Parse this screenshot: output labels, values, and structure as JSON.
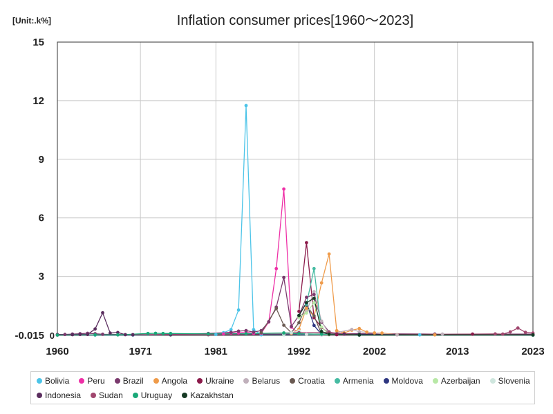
{
  "chart_data": {
    "type": "line",
    "title": "Inflation consumer prices[1960～2023]",
    "unit_label": "[Unit:.k%]",
    "xlim": [
      1960,
      2023
    ],
    "ylim": [
      -0.015,
      15
    ],
    "x_ticks": [
      1960,
      1971,
      1981,
      1992,
      2002,
      2013,
      2023
    ],
    "y_ticks": [
      {
        "value": 15,
        "label": "15"
      },
      {
        "value": 12,
        "label": "12"
      },
      {
        "value": 9,
        "label": "9"
      },
      {
        "value": 6,
        "label": "6"
      },
      {
        "value": 3,
        "label": "3"
      },
      {
        "value": -0.015,
        "label": "-0.015"
      }
    ],
    "y_tick_zero_label": "0",
    "grid": true,
    "legend_position": "bottom",
    "series": [
      {
        "name": "Bolivia",
        "color": "#4cc4e8",
        "points": [
          [
            1960,
            0.01
          ],
          [
            1965,
            0.0
          ],
          [
            1970,
            0.0
          ],
          [
            1975,
            0.01
          ],
          [
            1980,
            0.05
          ],
          [
            1981,
            0.03
          ],
          [
            1982,
            0.12
          ],
          [
            1983,
            0.28
          ],
          [
            1984,
            1.28
          ],
          [
            1985,
            11.75
          ],
          [
            1986,
            0.28
          ],
          [
            1987,
            0.015
          ],
          [
            1990,
            0.02
          ],
          [
            1995,
            0.01
          ],
          [
            2000,
            0.005
          ],
          [
            2008,
            0.01
          ],
          [
            2023,
            0.0
          ]
        ]
      },
      {
        "name": "Peru",
        "color": "#ee2fa6",
        "points": [
          [
            1960,
            0.01
          ],
          [
            1975,
            0.02
          ],
          [
            1980,
            0.06
          ],
          [
            1982,
            0.06
          ],
          [
            1983,
            0.11
          ],
          [
            1984,
            0.11
          ],
          [
            1985,
            0.16
          ],
          [
            1986,
            0.08
          ],
          [
            1987,
            0.09
          ],
          [
            1988,
            0.67
          ],
          [
            1989,
            3.4
          ],
          [
            1990,
            7.48
          ],
          [
            1991,
            0.41
          ],
          [
            1992,
            0.07
          ],
          [
            1993,
            0.05
          ],
          [
            1995,
            0.01
          ],
          [
            2000,
            0.0
          ],
          [
            2023,
            0.0
          ]
        ]
      },
      {
        "name": "Brazil",
        "color": "#7a3a6d",
        "points": [
          [
            1960,
            0.03
          ],
          [
            1961,
            0.03
          ],
          [
            1962,
            0.05
          ],
          [
            1963,
            0.07
          ],
          [
            1964,
            0.09
          ],
          [
            1965,
            0.07
          ],
          [
            1966,
            0.04
          ],
          [
            1970,
            0.02
          ],
          [
            1975,
            0.03
          ],
          [
            1980,
            0.08
          ],
          [
            1983,
            0.14
          ],
          [
            1984,
            0.2
          ],
          [
            1985,
            0.23
          ],
          [
            1986,
            0.15
          ],
          [
            1987,
            0.23
          ],
          [
            1988,
            0.68
          ],
          [
            1989,
            1.43
          ],
          [
            1990,
            2.95
          ],
          [
            1991,
            0.44
          ],
          [
            1992,
            1.0
          ],
          [
            1993,
            1.93
          ],
          [
            1994,
            2.08
          ],
          [
            1995,
            0.66
          ],
          [
            1996,
            0.16
          ],
          [
            1997,
            0.07
          ],
          [
            2000,
            0.07
          ],
          [
            2010,
            0.05
          ],
          [
            2023,
            0.05
          ]
        ]
      },
      {
        "name": "Angola",
        "color": "#ef9b4a",
        "points": [
          [
            1991,
            0.08
          ],
          [
            1992,
            0.3
          ],
          [
            1993,
            1.38
          ],
          [
            1994,
            0.95
          ],
          [
            1995,
            2.67
          ],
          [
            1996,
            4.15
          ],
          [
            1997,
            0.22
          ],
          [
            1998,
            0.11
          ],
          [
            1999,
            0.25
          ],
          [
            2000,
            0.33
          ],
          [
            2001,
            0.15
          ],
          [
            2002,
            0.11
          ],
          [
            2003,
            0.1
          ],
          [
            2005,
            0.02
          ],
          [
            2010,
            0.01
          ],
          [
            2023,
            0.01
          ]
        ]
      },
      {
        "name": "Ukraine",
        "color": "#8b1a4a",
        "points": [
          [
            1992,
            1.21
          ],
          [
            1993,
            4.73
          ],
          [
            1994,
            0.89
          ],
          [
            1995,
            0.38
          ],
          [
            1996,
            0.08
          ],
          [
            1997,
            0.02
          ],
          [
            2000,
            0.03
          ],
          [
            2015,
            0.05
          ],
          [
            2023,
            0.01
          ]
        ]
      },
      {
        "name": "Belarus",
        "color": "#c0b0bb",
        "points": [
          [
            1992,
            0.97
          ],
          [
            1993,
            1.19
          ],
          [
            1994,
            2.22
          ],
          [
            1995,
            0.71
          ],
          [
            1996,
            0.05
          ],
          [
            1999,
            0.29
          ],
          [
            2000,
            0.17
          ],
          [
            2005,
            0.01
          ],
          [
            2011,
            0.05
          ],
          [
            2023,
            0.01
          ]
        ]
      },
      {
        "name": "Croatia",
        "color": "#6a5a52",
        "points": [
          [
            1987,
            0.12
          ],
          [
            1989,
            1.36
          ],
          [
            1990,
            0.5
          ],
          [
            1991,
            0.12
          ],
          [
            1992,
            0.63
          ],
          [
            1993,
            1.52
          ],
          [
            1994,
            0.98
          ],
          [
            1995,
            0.04
          ],
          [
            2000,
            0.005
          ],
          [
            2023,
            0.0
          ]
        ]
      },
      {
        "name": "Armenia",
        "color": "#45bba2",
        "points": [
          [
            1993,
            1.58
          ],
          [
            1994,
            3.4
          ],
          [
            1995,
            0.18
          ],
          [
            1996,
            0.02
          ],
          [
            2000,
            0.0
          ],
          [
            2023,
            0.0
          ]
        ]
      },
      {
        "name": "Moldova",
        "color": "#2e3680",
        "points": [
          [
            1992,
            1.0
          ],
          [
            1993,
            1.65
          ],
          [
            1994,
            0.49
          ],
          [
            1995,
            0.03
          ],
          [
            2000,
            0.03
          ],
          [
            2023,
            0.0
          ]
        ]
      },
      {
        "name": "Azerbaijan",
        "color": "#b8e8a6",
        "points": [
          [
            1992,
            0.91
          ],
          [
            1993,
            1.13
          ],
          [
            1994,
            1.66
          ],
          [
            1995,
            0.41
          ],
          [
            1996,
            0.02
          ],
          [
            2000,
            0.0
          ],
          [
            2023,
            0.0
          ]
        ]
      },
      {
        "name": "Slovenia",
        "color": "#cfe6de",
        "points": [
          [
            1990,
            0.02
          ],
          [
            1991,
            0.12
          ],
          [
            1992,
            0.21
          ],
          [
            1993,
            0.03
          ],
          [
            1995,
            0.01
          ],
          [
            2023,
            0.0
          ]
        ]
      },
      {
        "name": "Indonesia",
        "color": "#5a2d5e",
        "points": [
          [
            1960,
            0.01
          ],
          [
            1962,
            0.02
          ],
          [
            1963,
            0.03
          ],
          [
            1964,
            0.03
          ],
          [
            1965,
            0.31
          ],
          [
            1966,
            1.14
          ],
          [
            1967,
            0.1
          ],
          [
            1968,
            0.13
          ],
          [
            1969,
            0.02
          ],
          [
            1970,
            0.01
          ],
          [
            1975,
            0.01
          ],
          [
            1980,
            0.02
          ],
          [
            1998,
            0.06
          ],
          [
            2000,
            0.0
          ],
          [
            2023,
            0.0
          ]
        ]
      },
      {
        "name": "Sudan",
        "color": "#a0466e",
        "points": [
          [
            1960,
            0.0
          ],
          [
            1980,
            0.02
          ],
          [
            1992,
            0.12
          ],
          [
            1996,
            0.13
          ],
          [
            2000,
            0.01
          ],
          [
            2018,
            0.06
          ],
          [
            2019,
            0.05
          ],
          [
            2020,
            0.16
          ],
          [
            2021,
            0.36
          ],
          [
            2022,
            0.14
          ],
          [
            2023,
            0.1
          ]
        ]
      },
      {
        "name": "Uruguay",
        "color": "#1aa878",
        "points": [
          [
            1960,
            0.0
          ],
          [
            1965,
            0.01
          ],
          [
            1968,
            0.01
          ],
          [
            1972,
            0.08
          ],
          [
            1973,
            0.09
          ],
          [
            1974,
            0.08
          ],
          [
            1975,
            0.08
          ],
          [
            1980,
            0.06
          ],
          [
            1985,
            0.07
          ],
          [
            1990,
            0.11
          ],
          [
            1992,
            0.07
          ],
          [
            1995,
            0.04
          ],
          [
            2000,
            0.0
          ],
          [
            2023,
            0.0
          ]
        ]
      },
      {
        "name": "Kazakhstan",
        "color": "#163a24",
        "points": [
          [
            1992,
            1.0
          ],
          [
            1993,
            1.66
          ],
          [
            1994,
            1.88
          ],
          [
            1995,
            0.18
          ],
          [
            1996,
            0.04
          ],
          [
            2000,
            0.01
          ],
          [
            2023,
            0.01
          ]
        ]
      }
    ]
  }
}
